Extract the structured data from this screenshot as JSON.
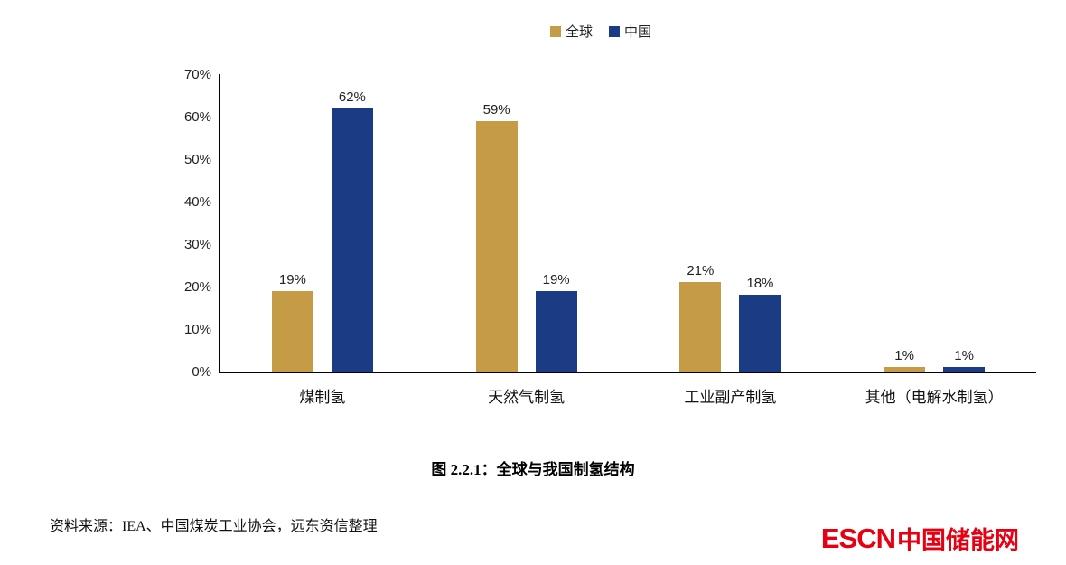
{
  "chart_data": {
    "type": "bar",
    "categories": [
      "煤制氢",
      "天然气制氢",
      "工业副产制氢",
      "其他（电解水制氢）"
    ],
    "series": [
      {
        "name": "全球",
        "color": "#C59B45",
        "values": [
          19,
          59,
          21,
          1
        ]
      },
      {
        "name": "中国",
        "color": "#1B3C85",
        "values": [
          62,
          19,
          18,
          1
        ]
      }
    ],
    "value_labels": [
      [
        "19%",
        "59%",
        "21%",
        "1%"
      ],
      [
        "62%",
        "19%",
        "18%",
        "1%"
      ]
    ],
    "title": "图 2.2.1：全球与我国制氢结构",
    "xlabel": "",
    "ylabel": "",
    "ylim": [
      0,
      70
    ],
    "yticks": [
      "70%",
      "60%",
      "50%",
      "40%",
      "30%",
      "20%",
      "10%",
      "0%"
    ],
    "grid": false,
    "legend_position": "top"
  },
  "caption": "图 2.2.1：全球与我国制氢结构",
  "source": "资料来源：IEA、中国煤炭工业协会，远东资信整理",
  "logo": {
    "text_en": "ESCN",
    "text_zh": "中国储能网",
    "color": "#E60012"
  }
}
